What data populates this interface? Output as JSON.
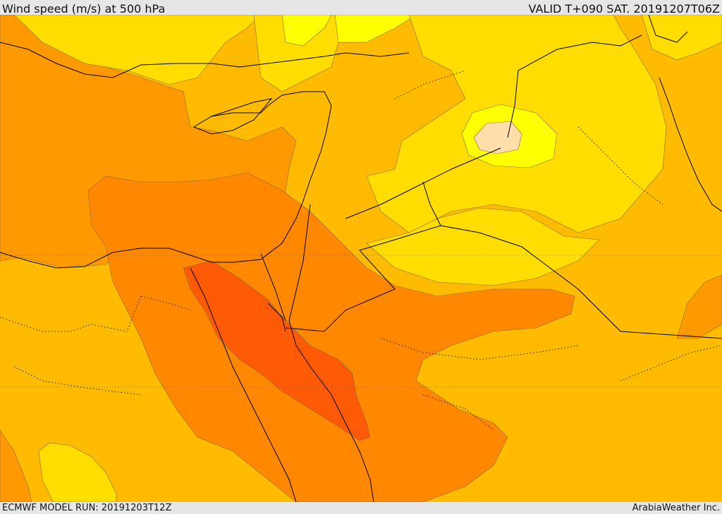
{
  "header": {
    "title": "Wind speed (m/s) at 500 hPa",
    "valid": "VALID T+090 SAT. 20191207T06Z"
  },
  "footer": {
    "model_run": "ECMWF MODEL RUN: 20191203T12Z",
    "credit": "ArabiaWeather Inc."
  },
  "colors": {
    "band_light_yellow": "#ffff00",
    "band_yellow": "#ffdd00",
    "band_gold": "#ffbb00",
    "band_orange": "#ff9900",
    "band_dark_orange": "#ff7a00",
    "band_red_orange": "#ff5a05",
    "band_peach": "#ffdeaa",
    "coastline": "#000000"
  }
}
